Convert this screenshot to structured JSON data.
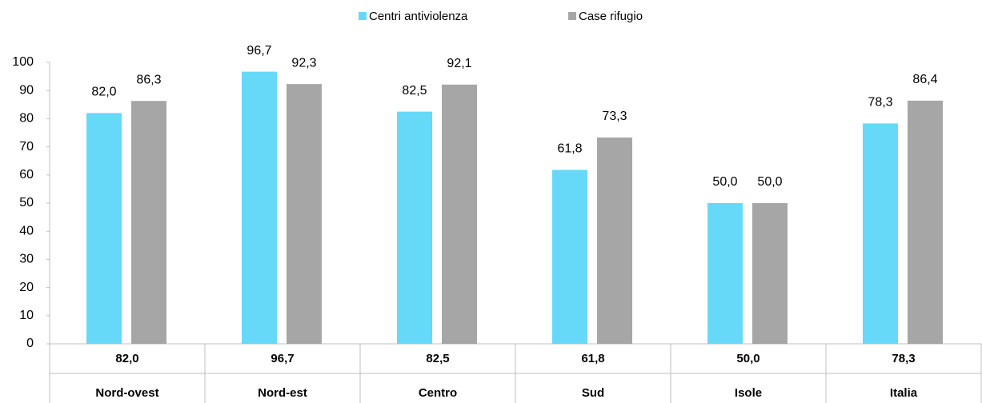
{
  "chart_data": {
    "type": "bar",
    "categories": [
      "Nord-ovest",
      "Nord-est",
      "Centro",
      "Sud",
      "Isole",
      "Italia"
    ],
    "series": [
      {
        "name": "Centri antiviolenza",
        "color": "#66d9f9",
        "values": [
          82.0,
          96.7,
          82.5,
          61.8,
          50.0,
          78.3
        ],
        "value_labels": [
          "82,0",
          "96,7",
          "82,5",
          "61,8",
          "50,0",
          "78,3"
        ]
      },
      {
        "name": "Case rifugio",
        "color": "#a6a6a6",
        "values": [
          86.3,
          92.3,
          92.1,
          73.3,
          50.0,
          86.4
        ],
        "value_labels": [
          "86,3",
          "92,3",
          "92,1",
          "73,3",
          "50,0",
          "86,4"
        ]
      }
    ],
    "ylim": [
      0,
      100
    ],
    "yticks": [
      0,
      10,
      20,
      30,
      40,
      50,
      60,
      70,
      80,
      90,
      100
    ],
    "grid": false,
    "legend": "top"
  }
}
